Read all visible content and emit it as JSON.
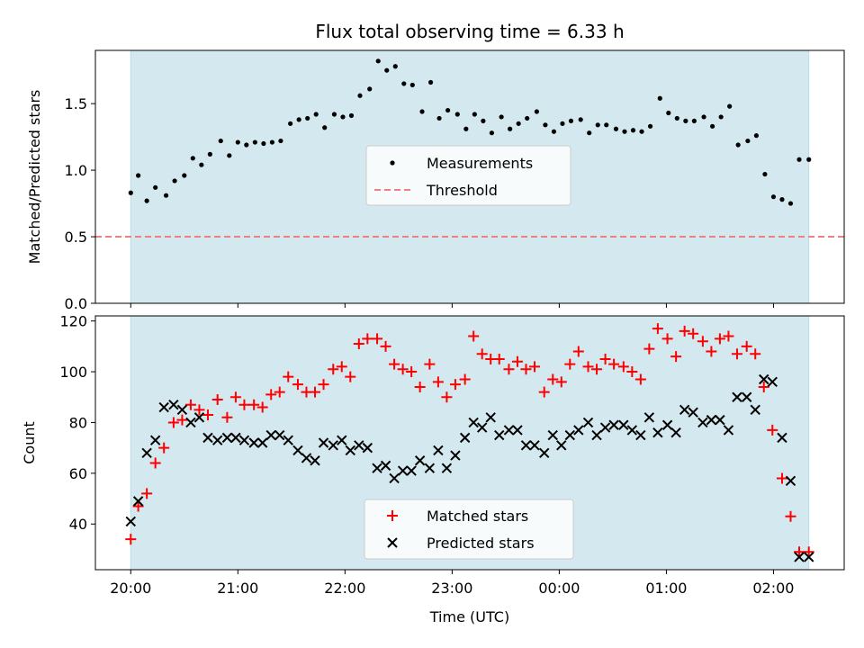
{
  "chart_data": {
    "title": "Flux total observing time = 6.33 h",
    "xlabel": "Time (UTC)",
    "x_tick_labels": [
      "20:00",
      "21:00",
      "22:00",
      "23:00",
      "00:00",
      "01:00",
      "02:00"
    ],
    "x_tick_hours": [
      0,
      1,
      2,
      3,
      4,
      5,
      6
    ],
    "x_range_hours": [
      -0.33,
      6.66
    ],
    "shaded_interval_hours": [
      0,
      6.33
    ],
    "colors": {
      "shade": "#d4e9ef",
      "shade_edge": "#bcdbe3",
      "measurement": "#000000",
      "threshold": "#f08080",
      "matched": "#ff0000",
      "predicted": "#000000"
    },
    "panels": [
      {
        "id": "ratio",
        "type": "scatter",
        "ylabel": "Matched/Predicted stars",
        "ylim": [
          0,
          1.9
        ],
        "y_ticks": [
          0.0,
          0.5,
          1.0,
          1.5
        ],
        "y_tick_labels": [
          "0.0",
          "0.5",
          "1.0",
          "1.5"
        ],
        "legend": {
          "position": "center",
          "entries": [
            {
              "label": "Measurements",
              "marker": "dot"
            },
            {
              "label": "Threshold",
              "marker": "dashed-line"
            }
          ]
        },
        "threshold": 0.5,
        "series": [
          {
            "name": "Measurements",
            "marker": "dot",
            "x": [
              0.0,
              0.07,
              0.15,
              0.23,
              0.33,
              0.41,
              0.5,
              0.58,
              0.66,
              0.74,
              0.84,
              0.92,
              1.0,
              1.08,
              1.16,
              1.24,
              1.32,
              1.4,
              1.49,
              1.57,
              1.65,
              1.73,
              1.81,
              1.9,
              1.98,
              2.06,
              2.14,
              2.23,
              2.31,
              2.39,
              2.47,
              2.55,
              2.63,
              2.72,
              2.8,
              2.88,
              2.96,
              3.05,
              3.13,
              3.21,
              3.29,
              3.37,
              3.46,
              3.54,
              3.62,
              3.7,
              3.79,
              3.87,
              3.95,
              4.03,
              4.11,
              4.2,
              4.28,
              4.36,
              4.44,
              4.53,
              4.61,
              4.69,
              4.77,
              4.85,
              4.94,
              5.02,
              5.1,
              5.18,
              5.26,
              5.35,
              5.43,
              5.51,
              5.59,
              5.67,
              5.76,
              5.84,
              5.92,
              6.0,
              6.08,
              6.16,
              6.24,
              6.33
            ],
            "y": [
              0.83,
              0.96,
              0.77,
              0.87,
              0.81,
              0.92,
              0.96,
              1.09,
              1.04,
              1.12,
              1.22,
              1.11,
              1.21,
              1.19,
              1.21,
              1.2,
              1.21,
              1.22,
              1.35,
              1.38,
              1.39,
              1.42,
              1.32,
              1.42,
              1.4,
              1.41,
              1.56,
              1.61,
              1.82,
              1.75,
              1.78,
              1.65,
              1.64,
              1.44,
              1.66,
              1.39,
              1.45,
              1.42,
              1.31,
              1.42,
              1.37,
              1.28,
              1.4,
              1.31,
              1.35,
              1.39,
              1.44,
              1.34,
              1.29,
              1.35,
              1.37,
              1.38,
              1.28,
              1.34,
              1.34,
              1.31,
              1.29,
              1.3,
              1.29,
              1.33,
              1.54,
              1.43,
              1.39,
              1.37,
              1.37,
              1.4,
              1.33,
              1.4,
              1.48,
              1.19,
              1.22,
              1.26,
              0.97,
              0.8,
              0.78,
              0.75,
              1.08,
              1.08
            ]
          }
        ]
      },
      {
        "id": "counts",
        "type": "scatter",
        "ylabel": "Count",
        "ylim": [
          22,
          122
        ],
        "y_ticks": [
          40,
          60,
          80,
          100,
          120
        ],
        "y_tick_labels": [
          "40",
          "60",
          "80",
          "100",
          "120"
        ],
        "legend": {
          "position": "lower center",
          "entries": [
            {
              "label": "Matched stars",
              "marker": "plus"
            },
            {
              "label": "Predicted stars",
              "marker": "x"
            }
          ]
        },
        "series": [
          {
            "name": "Matched stars",
            "marker": "plus",
            "x": [
              0.0,
              0.07,
              0.15,
              0.23,
              0.31,
              0.4,
              0.48,
              0.56,
              0.64,
              0.72,
              0.81,
              0.9,
              0.98,
              1.06,
              1.15,
              1.23,
              1.31,
              1.39,
              1.47,
              1.56,
              1.64,
              1.72,
              1.8,
              1.89,
              1.97,
              2.05,
              2.13,
              2.21,
              2.3,
              2.38,
              2.46,
              2.54,
              2.62,
              2.7,
              2.79,
              2.87,
              2.95,
              3.03,
              3.12,
              3.2,
              3.28,
              3.36,
              3.44,
              3.53,
              3.61,
              3.69,
              3.77,
              3.86,
              3.94,
              4.02,
              4.1,
              4.18,
              4.27,
              4.35,
              4.43,
              4.51,
              4.6,
              4.68,
              4.76,
              4.84,
              4.92,
              5.01,
              5.09,
              5.17,
              5.25,
              5.34,
              5.42,
              5.5,
              5.58,
              5.66,
              5.75,
              5.83,
              5.91,
              5.99,
              6.08,
              6.16,
              6.24,
              6.33
            ],
            "y": [
              34,
              47,
              52,
              64,
              70,
              80,
              81,
              87,
              85,
              83,
              89,
              82,
              90,
              87,
              87,
              86,
              91,
              92,
              98,
              95,
              92,
              92,
              95,
              101,
              102,
              98,
              111,
              113,
              113,
              110,
              103,
              101,
              100,
              94,
              103,
              96,
              90,
              95,
              97,
              114,
              107,
              105,
              105,
              101,
              104,
              101,
              102,
              92,
              97,
              96,
              103,
              108,
              102,
              101,
              105,
              103,
              102,
              100,
              97,
              109,
              117,
              113,
              106,
              116,
              115,
              112,
              108,
              113,
              114,
              107,
              110,
              107,
              94,
              77,
              58,
              43,
              29,
              29
            ]
          },
          {
            "name": "Predicted stars",
            "marker": "x",
            "x": [
              0.0,
              0.07,
              0.15,
              0.23,
              0.31,
              0.4,
              0.48,
              0.56,
              0.64,
              0.72,
              0.81,
              0.9,
              0.98,
              1.06,
              1.15,
              1.23,
              1.31,
              1.39,
              1.47,
              1.56,
              1.64,
              1.72,
              1.8,
              1.89,
              1.97,
              2.05,
              2.13,
              2.21,
              2.3,
              2.38,
              2.46,
              2.54,
              2.62,
              2.7,
              2.79,
              2.87,
              2.95,
              3.03,
              3.12,
              3.2,
              3.28,
              3.36,
              3.44,
              3.53,
              3.61,
              3.69,
              3.77,
              3.86,
              3.94,
              4.02,
              4.1,
              4.18,
              4.27,
              4.35,
              4.43,
              4.51,
              4.6,
              4.68,
              4.76,
              4.84,
              4.92,
              5.01,
              5.09,
              5.17,
              5.25,
              5.34,
              5.42,
              5.5,
              5.58,
              5.66,
              5.75,
              5.83,
              5.91,
              5.99,
              6.08,
              6.16,
              6.24,
              6.33
            ],
            "y": [
              41,
              49,
              68,
              73,
              86,
              87,
              85,
              80,
              82,
              74,
              73,
              74,
              74,
              73,
              72,
              72,
              75,
              75,
              73,
              69,
              66,
              65,
              72,
              71,
              73,
              69,
              71,
              70,
              62,
              63,
              58,
              61,
              61,
              65,
              62,
              69,
              62,
              67,
              74,
              80,
              78,
              82,
              75,
              77,
              77,
              71,
              71,
              68,
              75,
              71,
              75,
              77,
              80,
              75,
              78,
              79,
              79,
              77,
              75,
              82,
              76,
              79,
              76,
              85,
              84,
              80,
              81,
              81,
              77,
              90,
              90,
              85,
              97,
              96,
              74,
              57,
              27,
              27
            ]
          }
        ]
      }
    ]
  }
}
